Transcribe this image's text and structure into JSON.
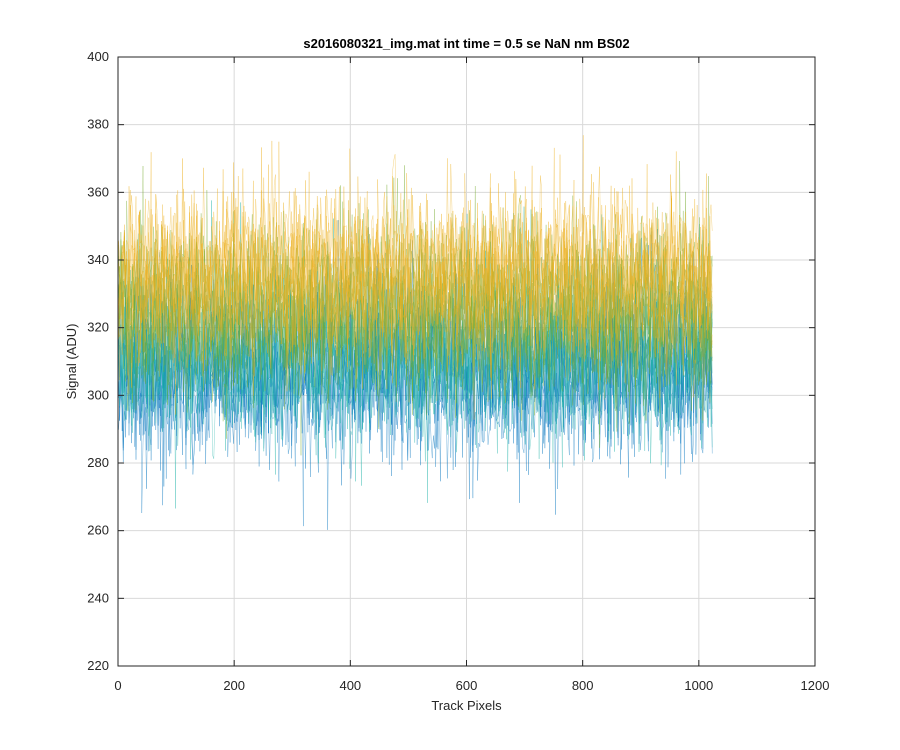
{
  "chart_data": {
    "type": "line",
    "title": "s2016080321_img.mat int time = 0.5 se  NaN nm BS02",
    "xlabel": "Track Pixels",
    "ylabel": "Signal (ADU)",
    "xlim": [
      0,
      1200
    ],
    "ylim": [
      220,
      400
    ],
    "xticks": [
      0,
      200,
      400,
      600,
      800,
      1000,
      1200
    ],
    "yticks": [
      220,
      240,
      260,
      280,
      300,
      320,
      340,
      360,
      380,
      400
    ],
    "grid": true,
    "x_range": [
      1,
      1024
    ],
    "series_count": 30,
    "signal_band_ADU": {
      "typical_min": 280,
      "typical_max": 360,
      "upper_center": 340,
      "lower_center": 300,
      "extreme_min": 245,
      "extreme_max": 380
    },
    "colors": {
      "high_signal": "#edb120",
      "mid_signal": "#77ac30",
      "teal_signal": "#1fb3a8",
      "low_signal": "#0072bd",
      "grid": "#d9d9d9",
      "axis": "#262626"
    }
  }
}
